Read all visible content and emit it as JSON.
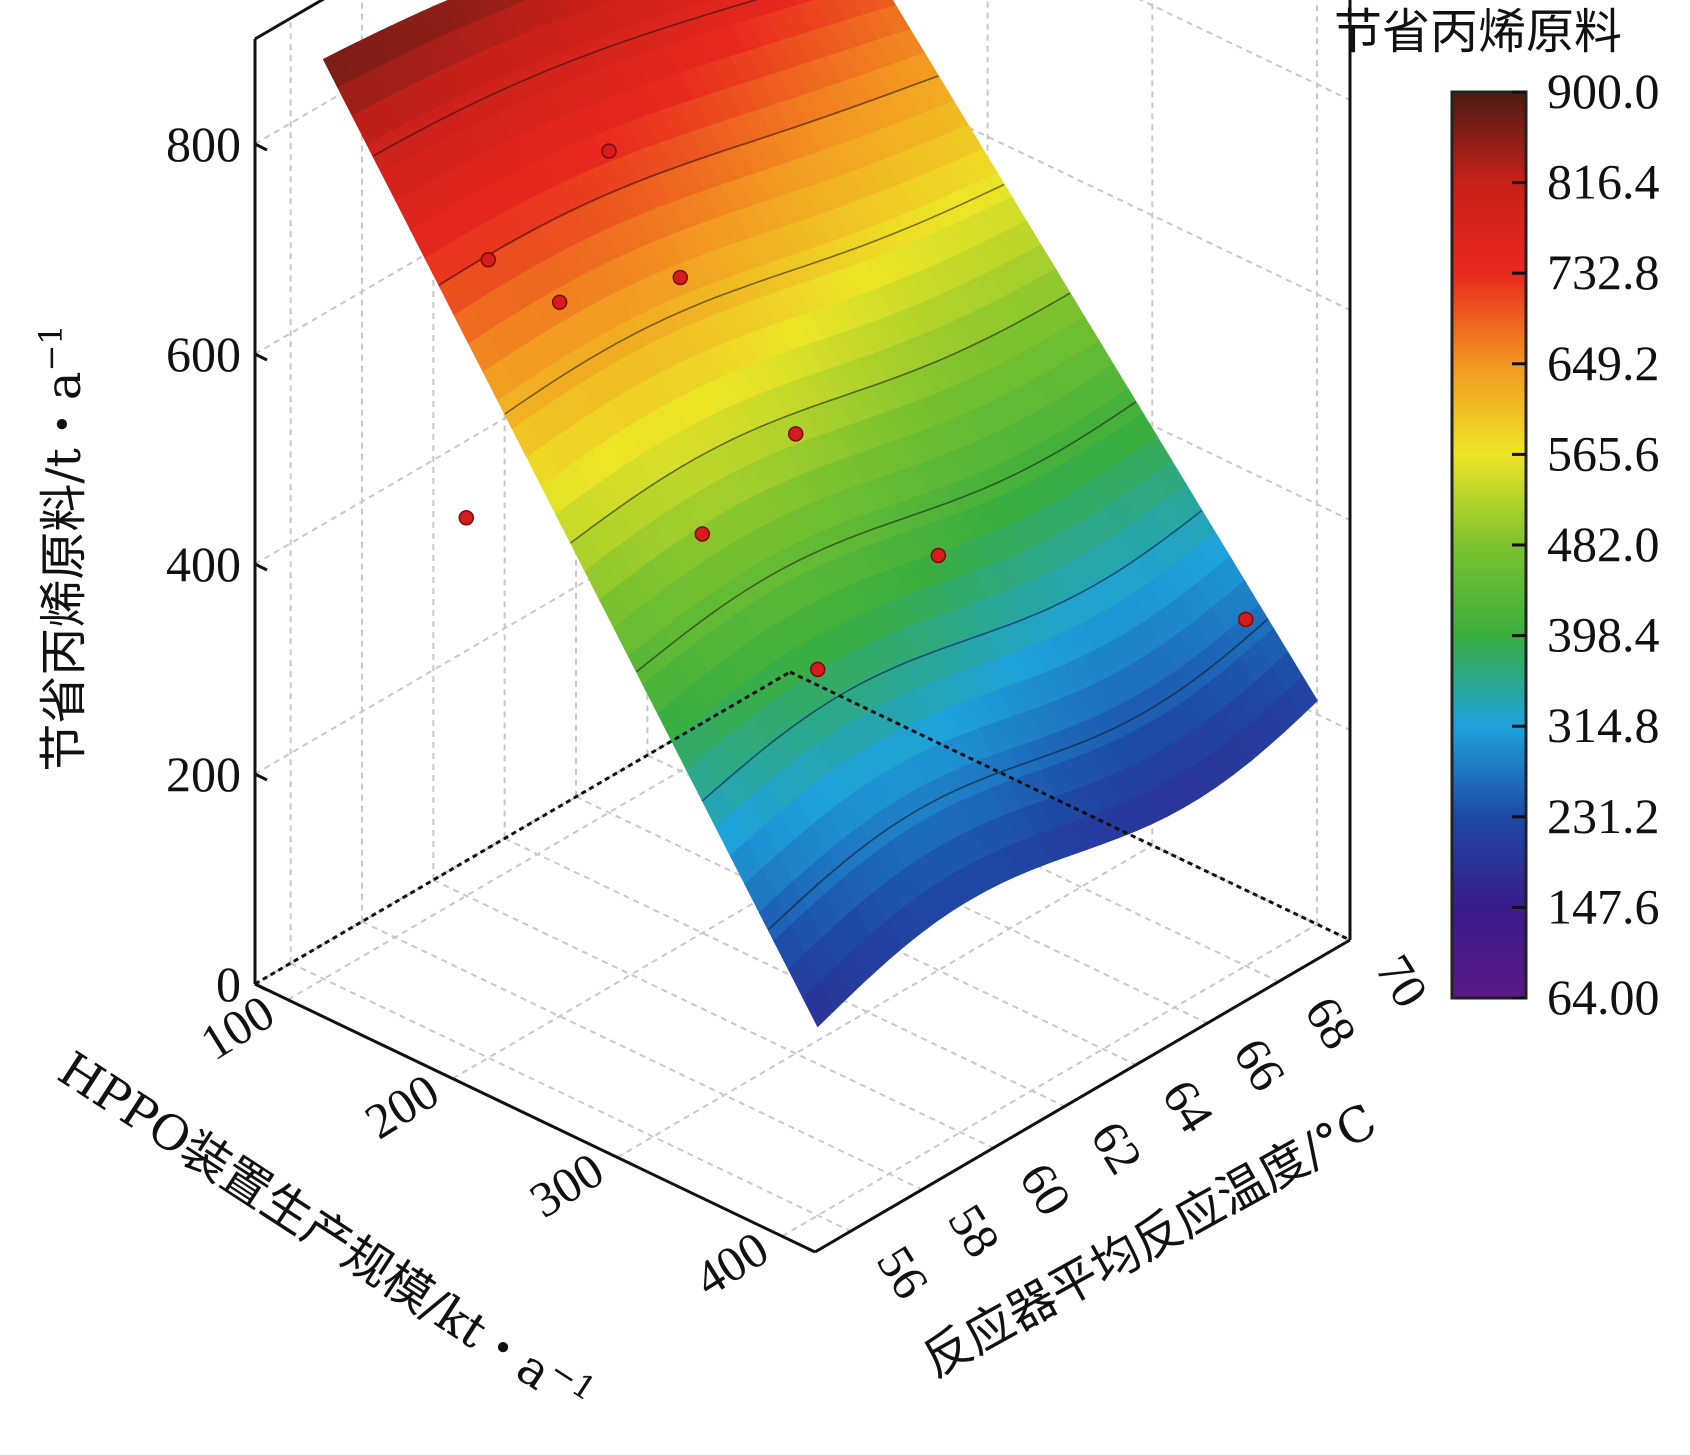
{
  "chart_data": {
    "type": "surface3d",
    "title": "",
    "xlabel": "HPPO装置生产规模/kt・a",
    "xlabel_sup": "−1",
    "ylabel": "反应器平均反应温度/°C",
    "zlabel": "节省丙烯原料/t・a",
    "zlabel_sup": "−1",
    "x_ticks": [
      "100",
      "200",
      "300",
      "400"
    ],
    "y_ticks": [
      "56",
      "58",
      "60",
      "62",
      "64",
      "66",
      "68",
      "70"
    ],
    "z_ticks": [
      "0",
      "200",
      "400",
      "600",
      "800"
    ],
    "xlim": [
      80,
      420
    ],
    "ylim": [
      55,
      70
    ],
    "zlim": [
      0,
      900
    ],
    "colorbar": {
      "title": "节省丙烯原料",
      "min": 64.0,
      "max": 900.0,
      "ticks": [
        "900.0",
        "816.4",
        "732.8",
        "649.2",
        "565.6",
        "482.0",
        "398.4",
        "314.8",
        "231.2",
        "147.6",
        "64.00"
      ],
      "colors": [
        "#5a1a86",
        "#3a1c8c",
        "#1d4aa6",
        "#1ea2dc",
        "#3aae3e",
        "#7cc22e",
        "#ede526",
        "#f39621",
        "#e8281e",
        "#c8201a",
        "#4a1c14"
      ]
    },
    "grid": true,
    "scatter_points": [
      {
        "x": 100,
        "y": 70,
        "z": 840
      },
      {
        "x": 100,
        "y": 64,
        "z": 630
      },
      {
        "x": 100,
        "y": 66,
        "z": 470
      },
      {
        "x": 200,
        "y": 56,
        "z": 760
      },
      {
        "x": 200,
        "y": 58,
        "z": 680
      },
      {
        "x": 300,
        "y": 60,
        "z": 590
      },
      {
        "x": 400,
        "y": 56,
        "z": 520
      },
      {
        "x": 100,
        "y": 60,
        "z": 360
      },
      {
        "x": 200,
        "y": 62,
        "z": 380
      },
      {
        "x": 300,
        "y": 64,
        "z": 395
      },
      {
        "x": 400,
        "y": 68,
        "z": 330
      }
    ]
  }
}
